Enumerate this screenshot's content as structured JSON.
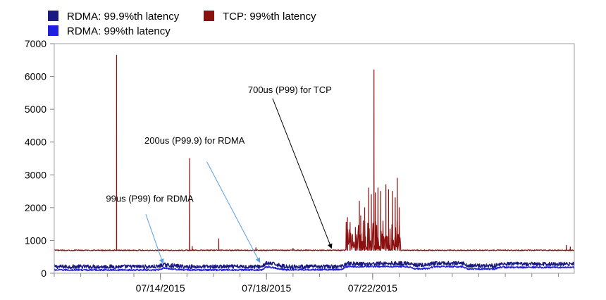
{
  "chart_data": {
    "type": "line",
    "title": "",
    "xlabel": "",
    "ylabel": "",
    "ylim": [
      0,
      7000
    ],
    "yticks": [
      0,
      1000,
      2000,
      3000,
      4000,
      5000,
      6000,
      7000
    ],
    "xlim_days": [
      0,
      19.6
    ],
    "xticks": [
      {
        "day": 4,
        "label": "07/14/2015"
      },
      {
        "day": 8,
        "label": "07/18/2015"
      },
      {
        "day": 12,
        "label": "07/22/2015"
      }
    ],
    "legend_position": "top",
    "series": [
      {
        "name": "RDMA: 99.9%th latency",
        "color": "#1a1a80",
        "baseline": [
          [
            0,
            200
          ],
          [
            3.9,
            200
          ],
          [
            4.1,
            260
          ],
          [
            4.5,
            230
          ],
          [
            4.9,
            200
          ],
          [
            7.8,
            200
          ],
          [
            8.0,
            300
          ],
          [
            8.4,
            270
          ],
          [
            8.7,
            200
          ],
          [
            10.8,
            200
          ],
          [
            11.0,
            300
          ],
          [
            11.7,
            280
          ],
          [
            12.3,
            300
          ],
          [
            13.3,
            300
          ],
          [
            13.6,
            250
          ],
          [
            14.1,
            250
          ],
          [
            14.3,
            300
          ],
          [
            15.4,
            300
          ],
          [
            15.6,
            230
          ],
          [
            16.6,
            230
          ],
          [
            16.8,
            280
          ],
          [
            19.6,
            280
          ]
        ],
        "noise": 60
      },
      {
        "name": "RDMA: 99%th latency",
        "color": "#1f1fe0",
        "baseline": [
          [
            0,
            100
          ],
          [
            3.9,
            100
          ],
          [
            4.1,
            160
          ],
          [
            4.9,
            100
          ],
          [
            7.8,
            100
          ],
          [
            8.0,
            200
          ],
          [
            8.7,
            110
          ],
          [
            10.8,
            110
          ],
          [
            11.0,
            200
          ],
          [
            12.3,
            210
          ],
          [
            13.3,
            200
          ],
          [
            13.6,
            140
          ],
          [
            14.1,
            140
          ],
          [
            14.3,
            200
          ],
          [
            15.4,
            200
          ],
          [
            15.6,
            130
          ],
          [
            16.6,
            130
          ],
          [
            16.8,
            180
          ],
          [
            19.6,
            180
          ]
        ],
        "noise": 25
      },
      {
        "name": "TCP: 99%th latency",
        "color": "#8b1010",
        "baseline": [
          [
            0,
            700
          ],
          [
            19.6,
            700
          ]
        ],
        "noise": 15,
        "spikes": [
          [
            2.35,
            6650
          ],
          [
            5.1,
            3500
          ],
          [
            5.2,
            820
          ],
          [
            6.2,
            1050
          ],
          [
            7.6,
            780
          ],
          [
            9.0,
            760
          ],
          [
            12.05,
            6200
          ],
          [
            19.3,
            850
          ],
          [
            19.45,
            800
          ]
        ],
        "burst_range": [
          11.0,
          13.05
        ],
        "burst_spikes": [
          [
            11.05,
            1700
          ],
          [
            11.15,
            1550
          ],
          [
            11.35,
            1400
          ],
          [
            11.5,
            2200
          ],
          [
            11.55,
            1750
          ],
          [
            11.7,
            2000
          ],
          [
            11.85,
            2600
          ],
          [
            11.95,
            2400
          ],
          [
            12.1,
            2450
          ],
          [
            12.2,
            2600
          ],
          [
            12.3,
            2500
          ],
          [
            12.5,
            2700
          ],
          [
            12.6,
            2550
          ],
          [
            12.75,
            2500
          ],
          [
            12.85,
            2300
          ],
          [
            12.93,
            2900
          ],
          [
            13.0,
            2000
          ]
        ]
      }
    ],
    "annotations": [
      {
        "text": "700us (P99) for TCP",
        "label_day": 7.3,
        "label_value": 5500,
        "arrow_from": [
          8.23,
          5330
        ],
        "arrow_to": [
          10.45,
          760
        ],
        "color": "#000000"
      },
      {
        "text": "200us (P99.9) for RDMA",
        "label_day": 3.4,
        "label_value": 3950,
        "arrow_from": [
          5.75,
          3400
        ],
        "arrow_to": [
          7.75,
          330
        ],
        "color": "#5a9ee8"
      },
      {
        "text": "99us (P99) for RDMA",
        "label_day": 1.95,
        "label_value": 2180,
        "arrow_from": [
          3.45,
          1800
        ],
        "arrow_to": [
          4.1,
          300
        ],
        "color": "#5a9ee8"
      }
    ]
  }
}
